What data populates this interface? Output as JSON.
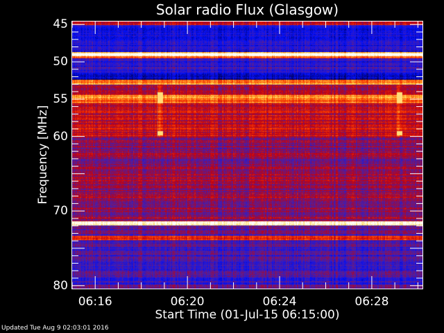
{
  "chart_data": {
    "type": "heatmap",
    "title": "Solar radio Flux (Glasgow)",
    "xlabel": "Start Time (01-Jul-15 06:15:00)",
    "ylabel": "Frequency [MHz]",
    "x_tick_labels": [
      "06:16",
      "06:20",
      "06:24",
      "06:28"
    ],
    "x_ticks_min": [
      1,
      5,
      9,
      13
    ],
    "xlim_min": [
      0,
      15.2
    ],
    "y_tick_labels": [
      "45",
      "50",
      "55",
      "60",
      "70",
      "80"
    ],
    "y_ticks": [
      45,
      50,
      55,
      60,
      70,
      80
    ],
    "ylim": [
      44.6,
      80.4
    ],
    "colormap": [
      "#000000",
      "#000060",
      "#0010ff",
      "#5020a0",
      "#c00010",
      "#ff4000",
      "#ffd040",
      "#ffffff"
    ],
    "background_level": 0.45,
    "bands": [
      {
        "from": 44.6,
        "to": 45.0,
        "level": 0.62
      },
      {
        "from": 45.0,
        "to": 48.6,
        "level": 0.32
      },
      {
        "from": 48.6,
        "to": 48.8,
        "level": 0.85
      },
      {
        "from": 48.8,
        "to": 49.2,
        "level": 1.0
      },
      {
        "from": 49.2,
        "to": 49.5,
        "level": 0.72
      },
      {
        "from": 49.5,
        "to": 51.5,
        "level": 0.35
      },
      {
        "from": 51.5,
        "to": 52.4,
        "level": 0.2
      },
      {
        "from": 52.4,
        "to": 53.0,
        "level": 0.78
      },
      {
        "from": 53.0,
        "to": 54.4,
        "level": 0.55
      },
      {
        "from": 54.4,
        "to": 55.5,
        "level": 0.76
      },
      {
        "from": 55.5,
        "to": 60.0,
        "level": 0.58
      },
      {
        "from": 60.0,
        "to": 71.3,
        "level": 0.5
      },
      {
        "from": 71.3,
        "to": 71.9,
        "level": 1.0
      },
      {
        "from": 71.9,
        "to": 73.3,
        "level": 0.45
      },
      {
        "from": 73.3,
        "to": 73.8,
        "level": 0.7
      },
      {
        "from": 73.8,
        "to": 80.4,
        "level": 0.4
      }
    ],
    "bursts_min": [
      3.8,
      14.2
    ],
    "updated": "Updated Tue Aug  9 02:03:01 2016"
  }
}
